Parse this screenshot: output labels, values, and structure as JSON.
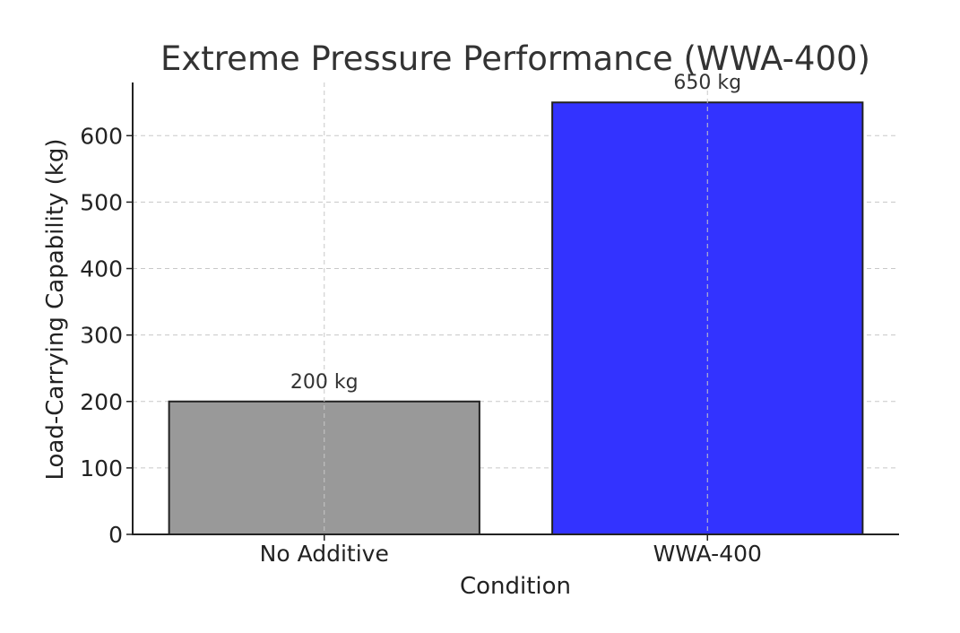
{
  "chart_data": {
    "type": "bar",
    "title": "Extreme Pressure Performance (WWA-400)",
    "xlabel": "Condition",
    "ylabel": "Load-Carrying Capability (kg)",
    "categories": [
      "No Additive",
      "WWA-400"
    ],
    "values": [
      200,
      650
    ],
    "data_labels": [
      "200 kg",
      "650 kg"
    ],
    "colors": [
      "#999999",
      "#3333ff"
    ],
    "ylim": [
      0,
      680
    ],
    "yticks": [
      0,
      100,
      200,
      300,
      400,
      500,
      600
    ],
    "grid": true
  }
}
